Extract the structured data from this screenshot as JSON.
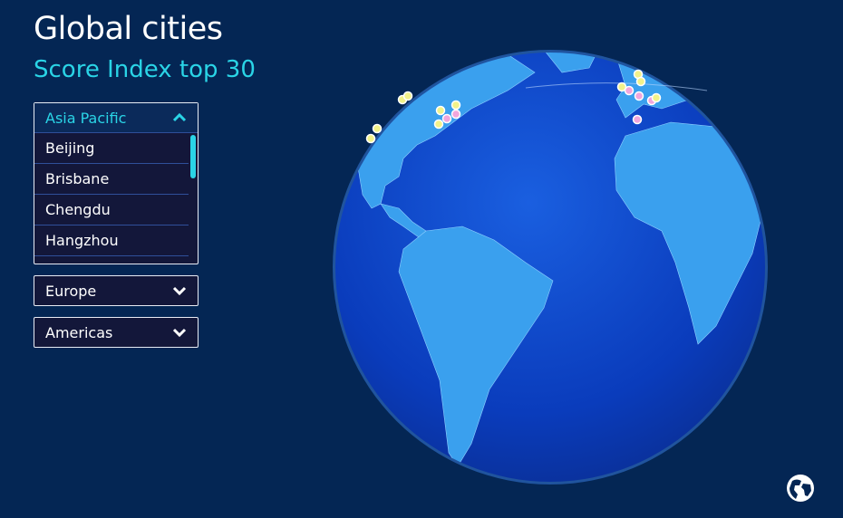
{
  "header": {
    "title": "Global cities",
    "subtitle": "Score Index top 30"
  },
  "dropdowns": [
    {
      "label": "Asia Pacific",
      "expanded": true,
      "items": [
        "Beijing",
        "Brisbane",
        "Chengdu",
        "Hangzhou"
      ]
    },
    {
      "label": "Europe",
      "expanded": false
    },
    {
      "label": "Americas",
      "expanded": false
    }
  ],
  "colors": {
    "background": "#042654",
    "accent": "#2ad4e6",
    "ocean": "#0a3fbf",
    "land": "#3aa0ee",
    "marker_yellow": "#f2f28a",
    "marker_pink": "#f2a6dc"
  },
  "icons": {
    "globe_button": "globe-icon",
    "expand": "chevron-down-icon",
    "collapse": "chevron-up-icon"
  }
}
